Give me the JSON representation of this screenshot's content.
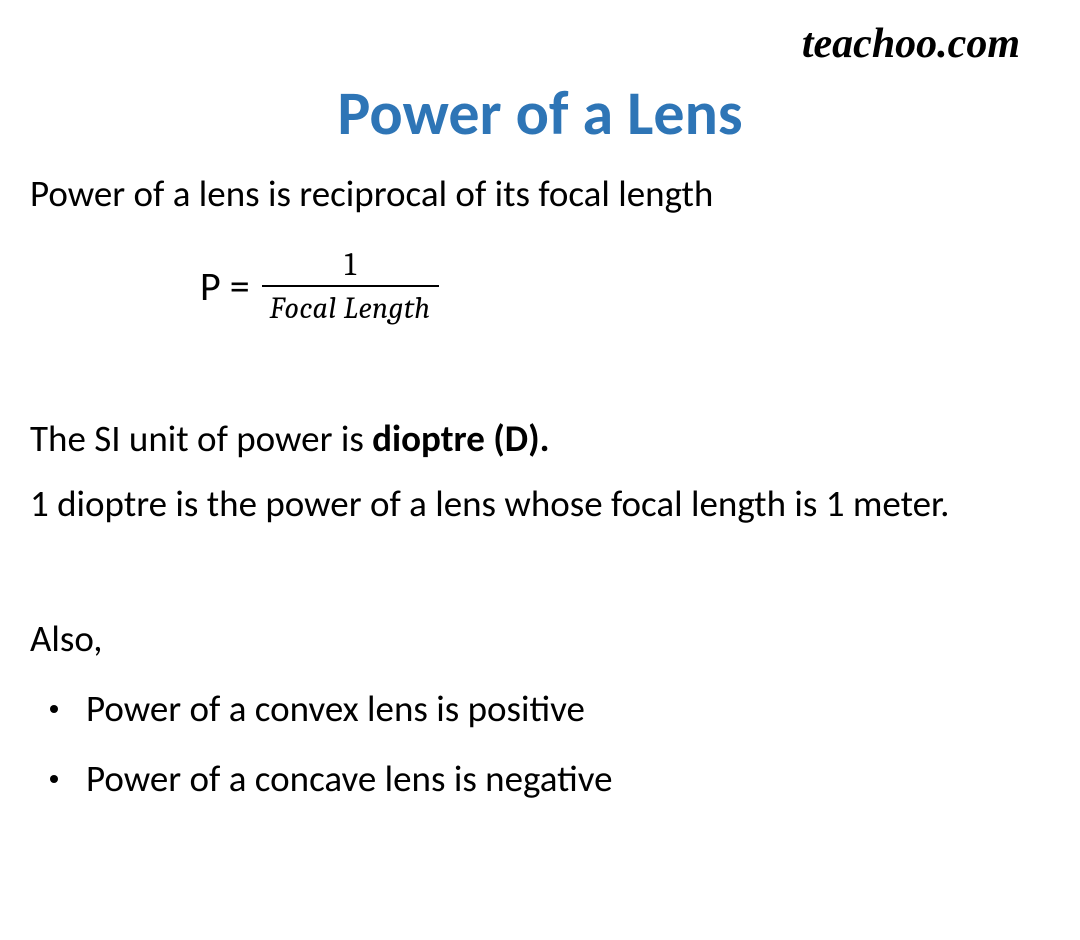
{
  "watermark": "teachoo.com",
  "title": "Power of a Lens",
  "definition": "Power of a lens is reciprocal of its focal length",
  "formula": {
    "lhs": "P =",
    "numerator": "1",
    "denominator": "Focal Length"
  },
  "si_unit_prefix": "The SI unit of power is ",
  "si_unit_bold": "dioptre (D).",
  "dioptre_def": "1 dioptre is the power of a lens whose focal length is 1 meter.",
  "also": "Also,",
  "bullets": {
    "0": "Power of a convex lens is positive",
    "1": "Power of a concave lens is negative"
  },
  "colors": {
    "title": "#2e75b6",
    "text": "#000000",
    "background": "#ffffff"
  },
  "fonts": {
    "body": "Calibri",
    "title_size": 62,
    "body_size": 37,
    "watermark_size": 42,
    "formula_size": 40
  }
}
